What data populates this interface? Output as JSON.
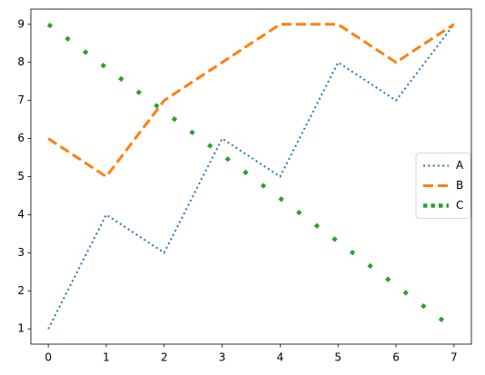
{
  "chart_data": {
    "type": "line",
    "x": [
      0,
      1,
      2,
      3,
      4,
      5,
      6,
      7
    ],
    "series": [
      {
        "name": "A",
        "color": "#1f77b4",
        "linestyle": "dotted",
        "values": [
          1,
          4,
          3,
          6,
          5,
          8,
          7,
          9
        ]
      },
      {
        "name": "B",
        "color": "#ff7f0e",
        "linestyle": "dashed",
        "values": [
          6,
          5,
          7,
          8,
          9,
          9,
          8,
          9
        ]
      },
      {
        "name": "C",
        "color": "#2ca02c",
        "linestyle": "dotted-thick",
        "values": [
          9,
          7.86,
          6.71,
          5.57,
          4.43,
          3.29,
          2.14,
          1
        ]
      }
    ],
    "xlim": [
      -0.3,
      7.3
    ],
    "xticks": [
      0,
      1,
      2,
      3,
      4,
      5,
      6,
      7
    ],
    "ylim": [
      0.6,
      9.4
    ],
    "yticks": [
      1,
      2,
      3,
      4,
      5,
      6,
      7,
      8,
      9
    ],
    "grid": false,
    "legend": "center right"
  }
}
